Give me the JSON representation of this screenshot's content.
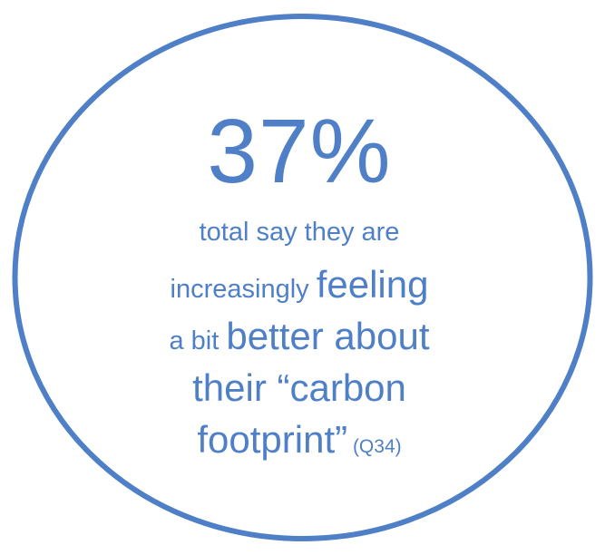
{
  "stat": {
    "value": "37%",
    "line1": "total say they are",
    "line2_a": "increasingly ",
    "line2_b": "feeling",
    "line3_a": "a bit ",
    "line3_b": "better about",
    "line4": "their “carbon",
    "line5_a": "footprint”",
    "line5_b": " (Q34)"
  },
  "colors": {
    "ring": "#4f80c7",
    "text": "#4f80c7"
  }
}
